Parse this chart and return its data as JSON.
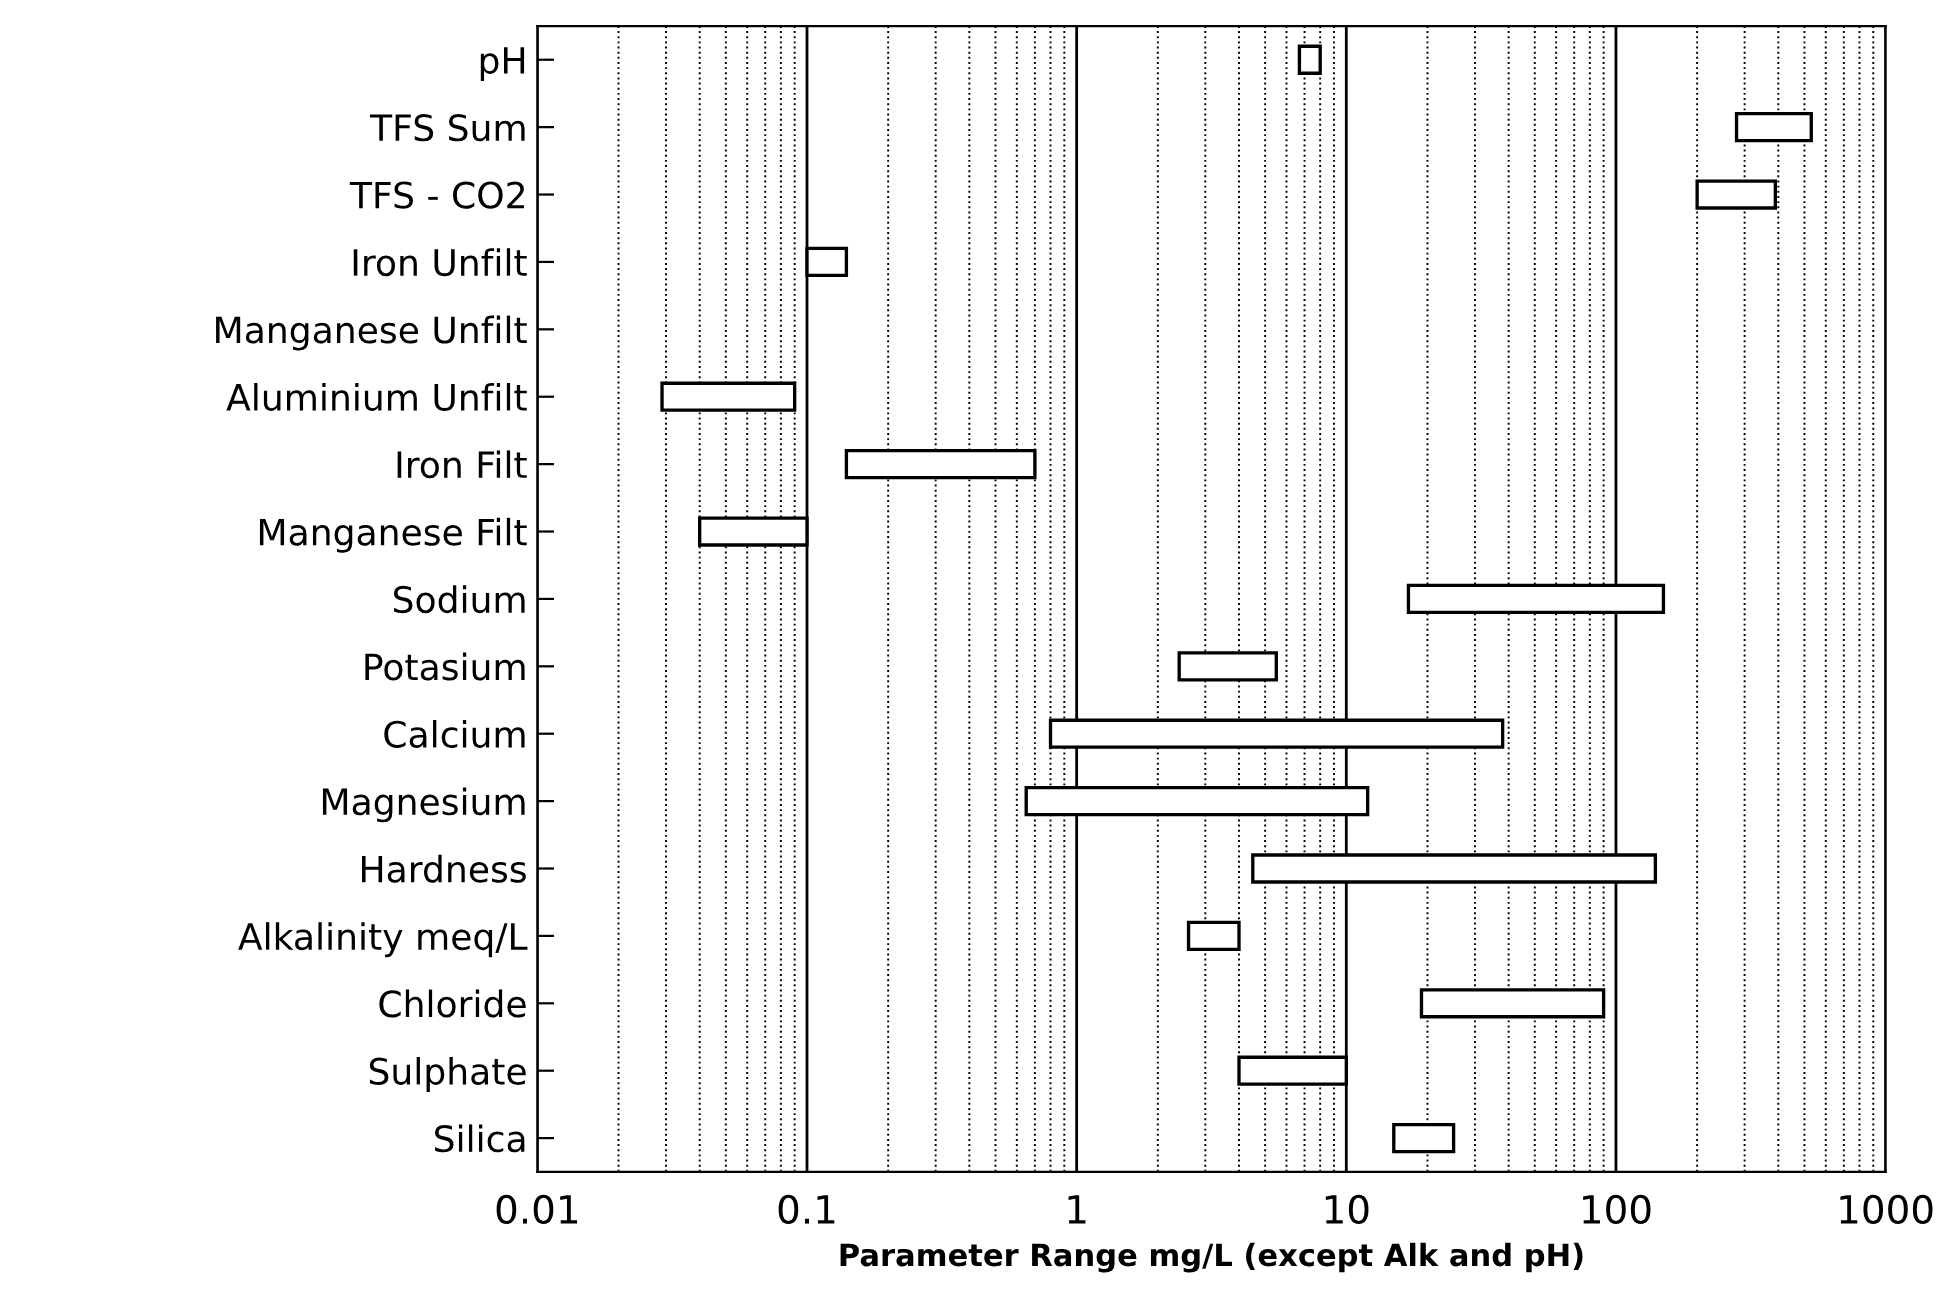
{
  "chart_data": {
    "type": "bar",
    "orientation": "horizontal",
    "log": "x",
    "xlabel": "Parameter Range mg/L (except Alk and pH)",
    "categories": [
      "pH",
      "TFS Sum",
      "TFS - CO2",
      "Iron Unfilt",
      "Manganese Unfilt",
      "Aluminium Unfilt",
      "Iron Filt",
      "Manganese Filt",
      "Sodium",
      "Potasium",
      "Calcium",
      "Magnesium",
      "Hardness",
      "Alkalinity meq/L",
      "Chloride",
      "Sulphate",
      "Silica"
    ],
    "base": [
      6.7,
      280,
      200,
      0.1,
      null,
      0.029,
      0.14,
      0.04,
      17,
      2.4,
      0.8,
      0.65,
      4.5,
      2.6,
      19,
      4,
      15
    ],
    "values": [
      1.3,
      250,
      190,
      0.04,
      null,
      0.061,
      0.56,
      0.06,
      133,
      3.1,
      37.2,
      11.35,
      135.5,
      1.4,
      71,
      6,
      10
    ],
    "color": "#ffffff",
    "xlim": [
      0.01,
      1000
    ],
    "xticks": [
      0.01,
      0.1,
      1,
      10,
      100,
      1000
    ],
    "grid": "x"
  }
}
